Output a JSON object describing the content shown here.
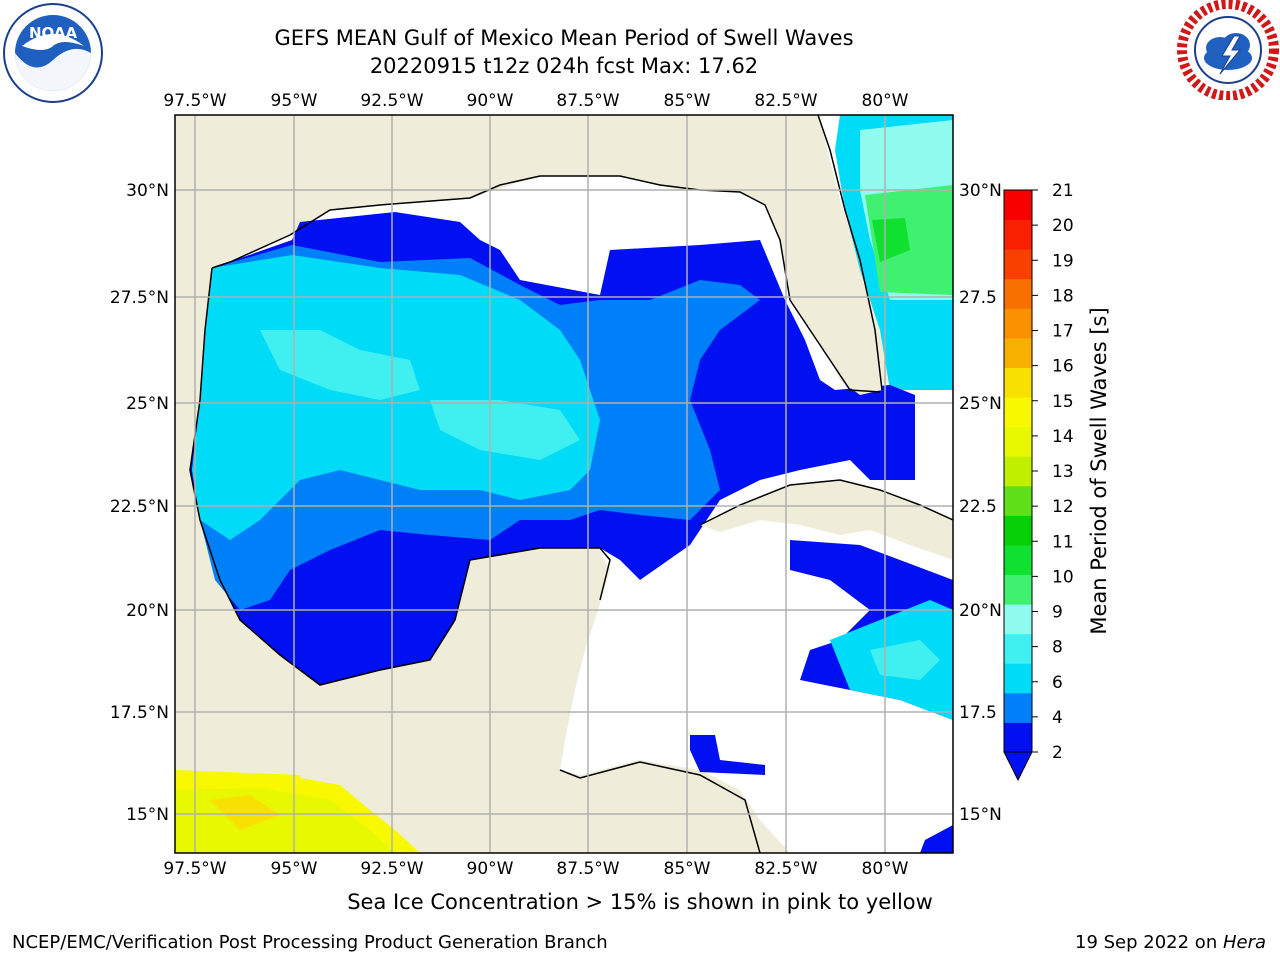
{
  "title_line1": "GEFS MEAN Gulf of Mexico Mean Period of Swell Waves",
  "title_line2": "20220915 t12z 024h fcst   Max: 17.62",
  "note": "Sea Ice Concentration > 15% is shown in pink to yellow",
  "footer_left": "NCEP/EMC/Verification Post Processing Product Generation Branch",
  "footer_right_date": "19 Sep 2022 on ",
  "footer_right_host": "Hera",
  "logos": {
    "left": "noaa-logo",
    "right": "nws-logo"
  },
  "map": {
    "lon_ticks": [
      "97.5°W",
      "95°W",
      "92.5°W",
      "90°W",
      "87.5°W",
      "85°W",
      "82.5°W",
      "80°W"
    ],
    "lat_ticks_left": [
      "30°N",
      "27.5°N",
      "25°N",
      "22.5°N",
      "20°N",
      "17.5°N",
      "15°N"
    ],
    "lat_ticks_right": [
      "30°N",
      "27.5",
      "25°N",
      "22.5",
      "20°N",
      "17.5",
      "15°N"
    ],
    "land_color": "#efedda",
    "water_color": "#ffffff",
    "grid_color": "#b0b0b0"
  },
  "colorbar": {
    "label": "Mean Period of Swell Waves [s]",
    "ticks": [
      "2",
      "4",
      "6",
      "8",
      "9",
      "10",
      "11",
      "12",
      "13",
      "14",
      "15",
      "16",
      "17",
      "18",
      "19",
      "20",
      "21"
    ],
    "colors": [
      "#0010f0",
      "#0080f8",
      "#00dcf8",
      "#40f0f0",
      "#90fcf0",
      "#40f070",
      "#10e030",
      "#08d008",
      "#60e018",
      "#c0f000",
      "#e8f800",
      "#f8f800",
      "#f8e000",
      "#f8b000",
      "#f89000",
      "#f87000",
      "#f84000",
      "#f82000",
      "#f80000"
    ]
  }
}
